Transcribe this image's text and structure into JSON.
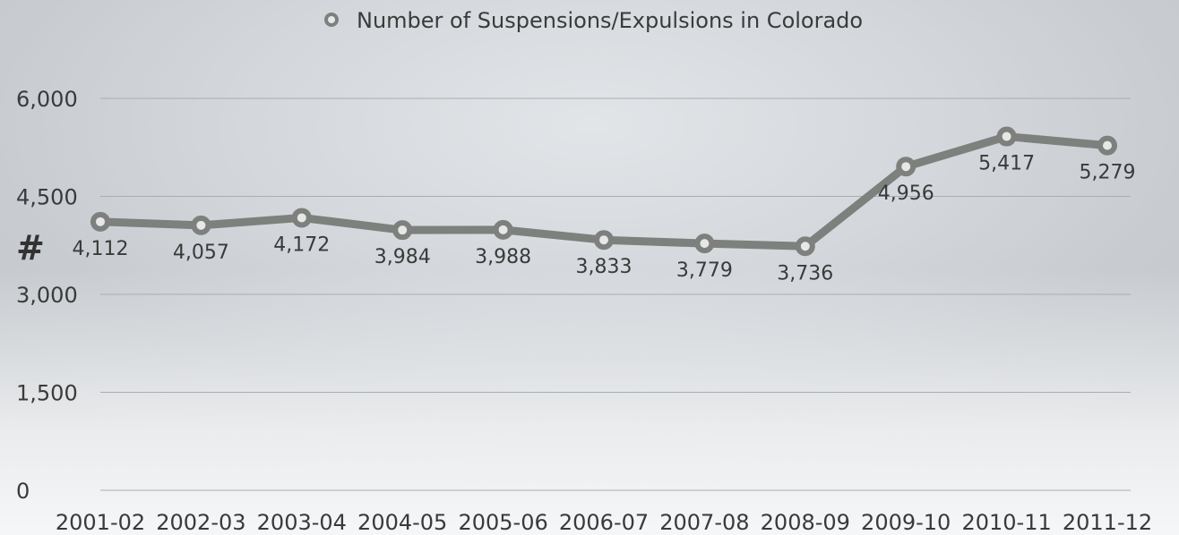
{
  "chart_data": {
    "type": "line",
    "title": "",
    "legend": {
      "entries": [
        "Number of Suspensions/Expulsions in Colorado"
      ],
      "placement": "top-center"
    },
    "xlabel": "",
    "ylabel": "#",
    "ylim": [
      0,
      6000
    ],
    "yticks": [
      0,
      1500,
      3000,
      4500,
      6000
    ],
    "ytick_labels": [
      "0",
      "1,500",
      "3,000",
      "4,500",
      "6,000"
    ],
    "grid": true,
    "categories": [
      "2001-02",
      "2002-03",
      "2003-04",
      "2004-05",
      "2005-06",
      "2006-07",
      "2007-08",
      "2008-09",
      "2009-10",
      "2010-11",
      "2011-12"
    ],
    "series": [
      {
        "name": "Number of Suspensions/Expulsions in Colorado",
        "values": [
          4112,
          4057,
          4172,
          3984,
          3988,
          3833,
          3779,
          3736,
          4956,
          5417,
          5279
        ],
        "data_labels": [
          "4,112",
          "4,057",
          "4,172",
          "3,984",
          "3,988",
          "3,833",
          "3,779",
          "3,736",
          "4,956",
          "5,417",
          "5,279"
        ]
      }
    ],
    "colors": {
      "series": "#7d807c",
      "marker_fill": "#e6e7e6",
      "text": "#3a3a3a",
      "grid": "#a9adb1"
    }
  }
}
